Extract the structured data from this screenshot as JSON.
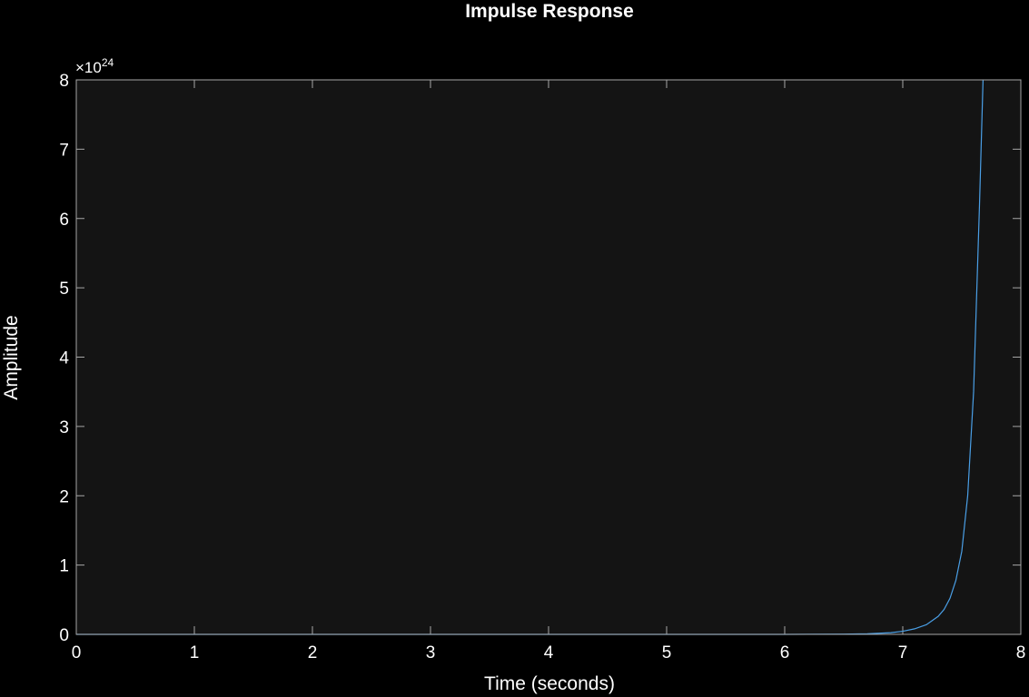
{
  "chart_data": {
    "type": "line",
    "title": "Impulse Response",
    "xlabel": "Time (seconds)",
    "ylabel": "Amplitude",
    "xlim": [
      0,
      8
    ],
    "ylim": [
      0,
      8
    ],
    "x_ticks": [
      "0",
      "1",
      "2",
      "3",
      "4",
      "5",
      "6",
      "7",
      "8"
    ],
    "y_ticks": [
      "0",
      "1",
      "2",
      "3",
      "4",
      "5",
      "6",
      "7",
      "8"
    ],
    "y_exponent_base": "×10",
    "y_exponent_power": "24",
    "grid": false,
    "colors": {
      "background": "#000000",
      "axes_background": "#141414",
      "axes_edge": "#a6a6a6",
      "line": "#4a9fe6",
      "text": "#ffffff"
    },
    "series": [
      {
        "x": [
          0,
          1,
          2,
          3,
          4,
          5,
          6,
          6.5,
          6.7,
          6.9,
          7.0,
          7.1,
          7.2,
          7.3,
          7.35,
          7.4,
          7.45,
          7.5,
          7.55,
          7.6,
          7.65,
          7.68
        ],
        "y": [
          0,
          0,
          0,
          0,
          0,
          0,
          0,
          0.003,
          0.008,
          0.025,
          0.045,
          0.08,
          0.14,
          0.26,
          0.36,
          0.52,
          0.78,
          1.2,
          2.0,
          3.5,
          6.2,
          8.0
        ]
      }
    ]
  }
}
